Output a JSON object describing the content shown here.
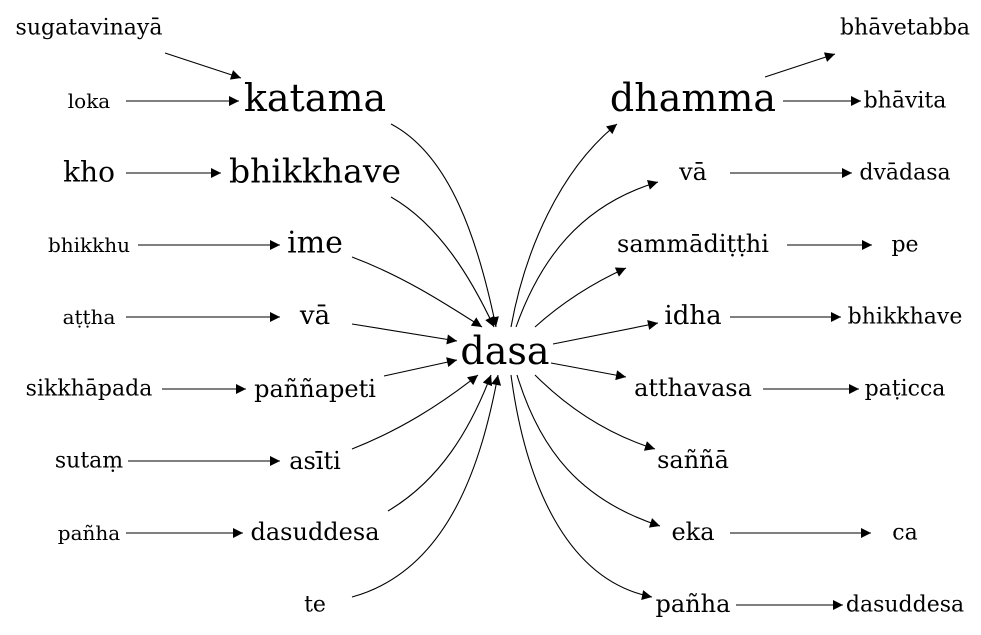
{
  "nodes": {
    "dasa": "dasa",
    "katama": "katama",
    "bhikkhave_l": "bhikkhave",
    "ime": "ime",
    "va_l": "vā",
    "pannapeti": "paññapeti",
    "asiti": "asīti",
    "dasuddesa_l": "dasuddesa",
    "te": "te",
    "sugatavinaya": "sugatavinayā",
    "loka": "loka",
    "kho": "kho",
    "bhikkhu": "bhikkhu",
    "attha": "aṭṭha",
    "sikkhapada": "sikkhāpada",
    "sutam": "sutaṃ",
    "panha_l": "pañha",
    "dhamma": "dhamma",
    "va_r": "vā",
    "sammaditthi": "sammādiṭṭhi",
    "idha": "idha",
    "atthavasa": "atthavasa",
    "sanna": "saññā",
    "eka": "eka",
    "panha_r": "pañha",
    "bhavetabba": "bhāvetabba",
    "bhavita": "bhāvita",
    "dvadasa": "dvādasa",
    "pe": "pe",
    "bhikkhave_r": "bhikkhave",
    "paticca": "paṭicca",
    "ca": "ca",
    "dasuddesa_r": "dasuddesa"
  },
  "edges": [
    [
      "sugatavinaya",
      "katama"
    ],
    [
      "loka",
      "katama"
    ],
    [
      "kho",
      "bhikkhave_l"
    ],
    [
      "bhikkhu",
      "ime"
    ],
    [
      "attha",
      "va_l"
    ],
    [
      "sikkhapada",
      "pannapeti"
    ],
    [
      "sutam",
      "asiti"
    ],
    [
      "panha_l",
      "dasuddesa_l"
    ],
    [
      "katama",
      "dasa"
    ],
    [
      "bhikkhave_l",
      "dasa"
    ],
    [
      "ime",
      "dasa"
    ],
    [
      "va_l",
      "dasa"
    ],
    [
      "pannapeti",
      "dasa"
    ],
    [
      "asiti",
      "dasa"
    ],
    [
      "dasuddesa_l",
      "dasa"
    ],
    [
      "te",
      "dasa"
    ],
    [
      "dasa",
      "dhamma"
    ],
    [
      "dasa",
      "va_r"
    ],
    [
      "dasa",
      "sammaditthi"
    ],
    [
      "dasa",
      "idha"
    ],
    [
      "dasa",
      "atthavasa"
    ],
    [
      "dasa",
      "sanna"
    ],
    [
      "dasa",
      "eka"
    ],
    [
      "dasa",
      "panha_r"
    ],
    [
      "dhamma",
      "bhavetabba"
    ],
    [
      "dhamma",
      "bhavita"
    ],
    [
      "va_r",
      "dvadasa"
    ],
    [
      "sammaditthi",
      "pe"
    ],
    [
      "idha",
      "bhikkhave_r"
    ],
    [
      "atthavasa",
      "paticca"
    ],
    [
      "eka",
      "ca"
    ],
    [
      "panha_r",
      "dasuddesa_r"
    ]
  ]
}
